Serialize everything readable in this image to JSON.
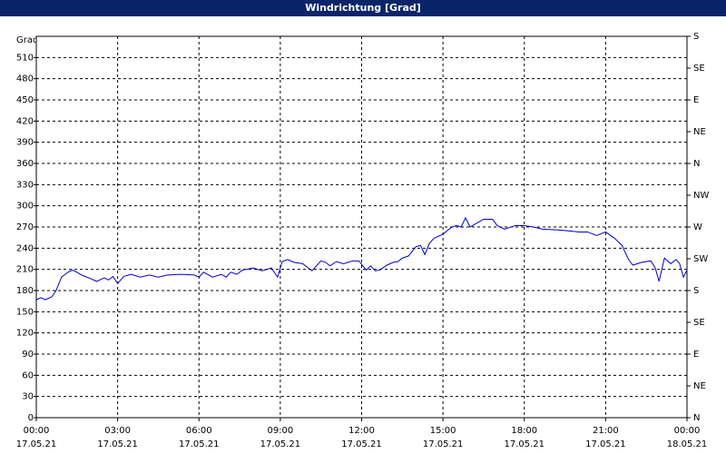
{
  "window": {
    "title": "Windrichtung [Grad]"
  },
  "chart_data": {
    "type": "line",
    "y_label": "Grad",
    "grid": true,
    "xlim": [
      0,
      24
    ],
    "xticks": [
      {
        "value": 0,
        "label": "00:00",
        "date": "17.05.21"
      },
      {
        "value": 3,
        "label": "03:00",
        "date": "17.05.21"
      },
      {
        "value": 6,
        "label": "06:00",
        "date": "17.05.21"
      },
      {
        "value": 9,
        "label": "09:00",
        "date": "17.05.21"
      },
      {
        "value": 12,
        "label": "12:00",
        "date": "17.05.21"
      },
      {
        "value": 15,
        "label": "15:00",
        "date": "17.05.21"
      },
      {
        "value": 18,
        "label": "18:00",
        "date": "17.05.21"
      },
      {
        "value": 21,
        "label": "21:00",
        "date": "17.05.21"
      },
      {
        "value": 24,
        "label": "00:00",
        "date": "18.05.21"
      }
    ],
    "ylim": [
      0,
      540
    ],
    "yticks": [
      0,
      30,
      60,
      90,
      120,
      150,
      180,
      210,
      240,
      270,
      300,
      330,
      360,
      390,
      420,
      450,
      480,
      510
    ],
    "y2lim": [
      0,
      540
    ],
    "y2ticks": [
      {
        "value": 0,
        "label": "N"
      },
      {
        "value": 45,
        "label": "NE"
      },
      {
        "value": 90,
        "label": "E"
      },
      {
        "value": 135,
        "label": "SE"
      },
      {
        "value": 180,
        "label": "S"
      },
      {
        "value": 225,
        "label": "SW"
      },
      {
        "value": 270,
        "label": "W"
      },
      {
        "value": 315,
        "label": "NW"
      },
      {
        "value": 360,
        "label": "N"
      },
      {
        "value": 405,
        "label": "NE"
      },
      {
        "value": 450,
        "label": "E"
      },
      {
        "value": 495,
        "label": "SE"
      },
      {
        "value": 540,
        "label": "S"
      }
    ],
    "series": [
      {
        "color": "#0000c8",
        "x": [
          0,
          0.17,
          0.33,
          0.57,
          0.73,
          0.93,
          1.17,
          1.33,
          1.5,
          1.67,
          2.0,
          2.23,
          2.5,
          2.67,
          2.83,
          3.0,
          3.23,
          3.5,
          3.83,
          4.17,
          4.5,
          4.83,
          5.33,
          5.83,
          6.0,
          6.17,
          6.5,
          6.83,
          7.0,
          7.17,
          7.4,
          7.6,
          8.0,
          8.33,
          8.67,
          8.9,
          9.07,
          9.27,
          9.5,
          9.83,
          10.17,
          10.5,
          10.67,
          10.83,
          11.07,
          11.33,
          11.67,
          11.9,
          12.17,
          12.33,
          12.5,
          12.67,
          12.93,
          13.17,
          13.33,
          13.5,
          13.73,
          14.0,
          14.17,
          14.33,
          14.5,
          14.67,
          15.0,
          15.33,
          15.5,
          15.67,
          15.83,
          16.0,
          16.27,
          16.5,
          16.83,
          17.0,
          17.27,
          17.67,
          18.0,
          18.33,
          18.67,
          19.17,
          19.5,
          20.0,
          20.33,
          20.67,
          21.0,
          21.33,
          21.6,
          21.83,
          22.0,
          22.33,
          22.67,
          22.83,
          22.97,
          23.17,
          23.4,
          23.6,
          23.73,
          23.87,
          24.0
        ],
        "values": [
          167,
          170,
          167,
          171,
          180,
          199,
          206,
          209,
          206,
          202,
          197,
          193,
          198,
          195,
          200,
          190,
          200,
          203,
          199,
          202,
          199,
          202,
          203,
          202,
          199,
          206,
          199,
          203,
          199,
          206,
          203,
          209,
          212,
          208,
          212,
          199,
          221,
          224,
          220,
          218,
          208,
          222,
          220,
          215,
          221,
          218,
          222,
          222,
          209,
          215,
          208,
          209,
          216,
          220,
          221,
          226,
          229,
          242,
          244,
          231,
          247,
          254,
          260,
          270,
          272,
          270,
          283,
          270,
          276,
          281,
          281,
          272,
          267,
          272,
          272,
          270,
          267,
          266,
          265,
          263,
          263,
          258,
          263,
          254,
          244,
          225,
          216,
          220,
          222,
          212,
          193,
          226,
          218,
          224,
          218,
          199,
          209
        ]
      }
    ]
  }
}
